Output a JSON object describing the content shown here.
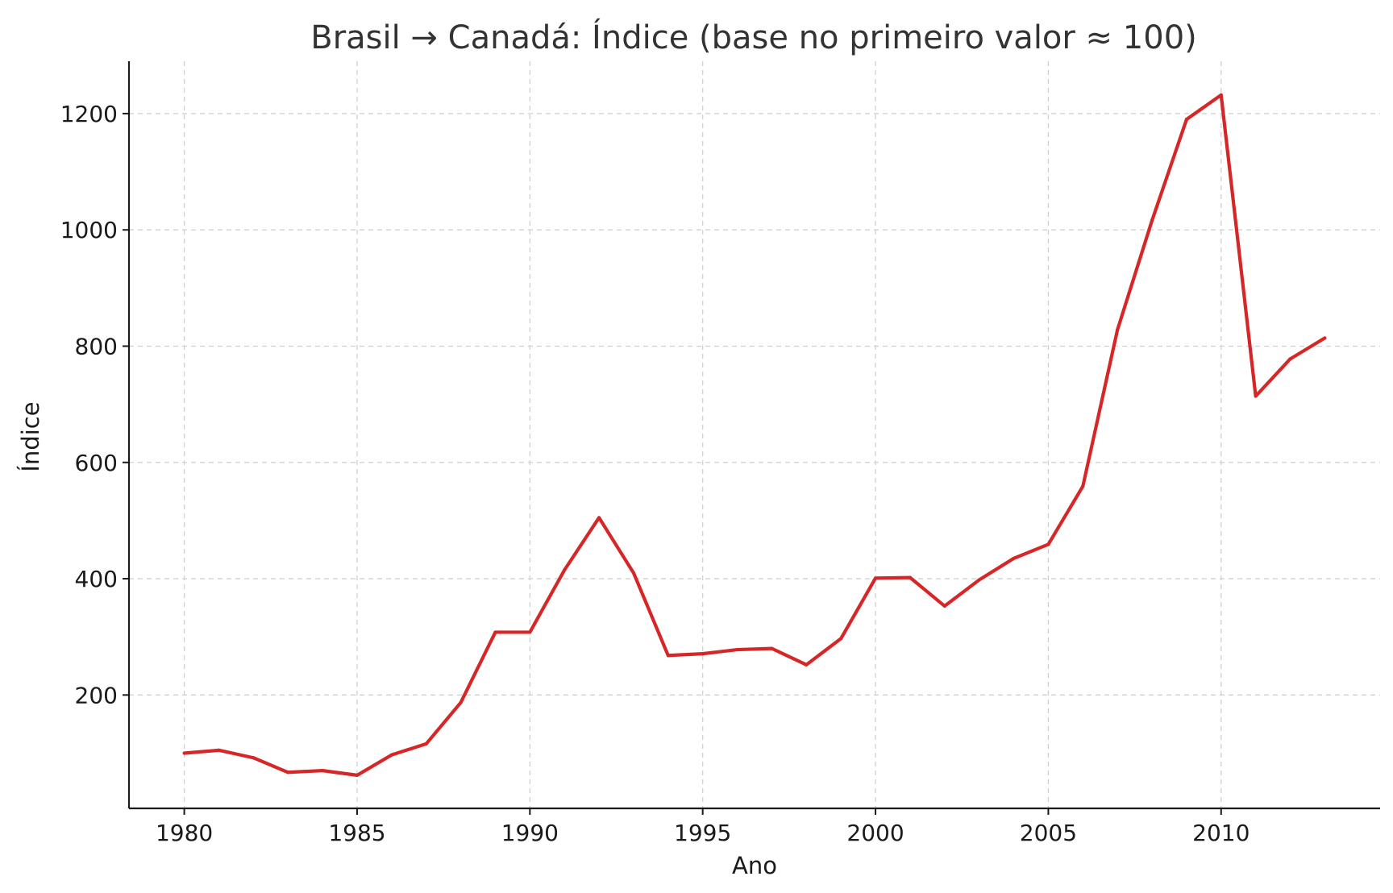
{
  "chart_data": {
    "type": "line",
    "title": "Brasil → Canadá: Índice (base no primeiro valor ≈ 100)",
    "xlabel": "Ano",
    "ylabel": "Índice",
    "xlim": [
      1978.4,
      2014.6
    ],
    "ylim": [
      5,
      1290
    ],
    "x_ticks": [
      1980,
      1985,
      1990,
      1995,
      2000,
      2005,
      2010
    ],
    "x_tick_labels": [
      "1980",
      "1985",
      "1990",
      "1995",
      "2000",
      "2005",
      "2010"
    ],
    "y_ticks": [
      200,
      400,
      600,
      800,
      1000,
      1200
    ],
    "y_tick_labels": [
      "200",
      "400",
      "600",
      "800",
      "1000",
      "1200"
    ],
    "grid": true,
    "series": [
      {
        "color": "#d62728",
        "x": [
          1980,
          1981,
          1982,
          1983,
          1984,
          1985,
          1986,
          1987,
          1988,
          1989,
          1990,
          1991,
          1992,
          1993,
          1994,
          1995,
          1996,
          1997,
          1998,
          1999,
          2000,
          2001,
          2002,
          2003,
          2004,
          2005,
          2006,
          2007,
          2008,
          2009,
          2010,
          2011,
          2012,
          2013
        ],
        "values": [
          100,
          105,
          92,
          67,
          70,
          62,
          97,
          116,
          187,
          308,
          308,
          415,
          505,
          410,
          268,
          271,
          278,
          280,
          252,
          297,
          401,
          402,
          353,
          398,
          435,
          459,
          559,
          828,
          1016,
          1190,
          1232,
          714,
          778,
          814
        ]
      }
    ]
  }
}
